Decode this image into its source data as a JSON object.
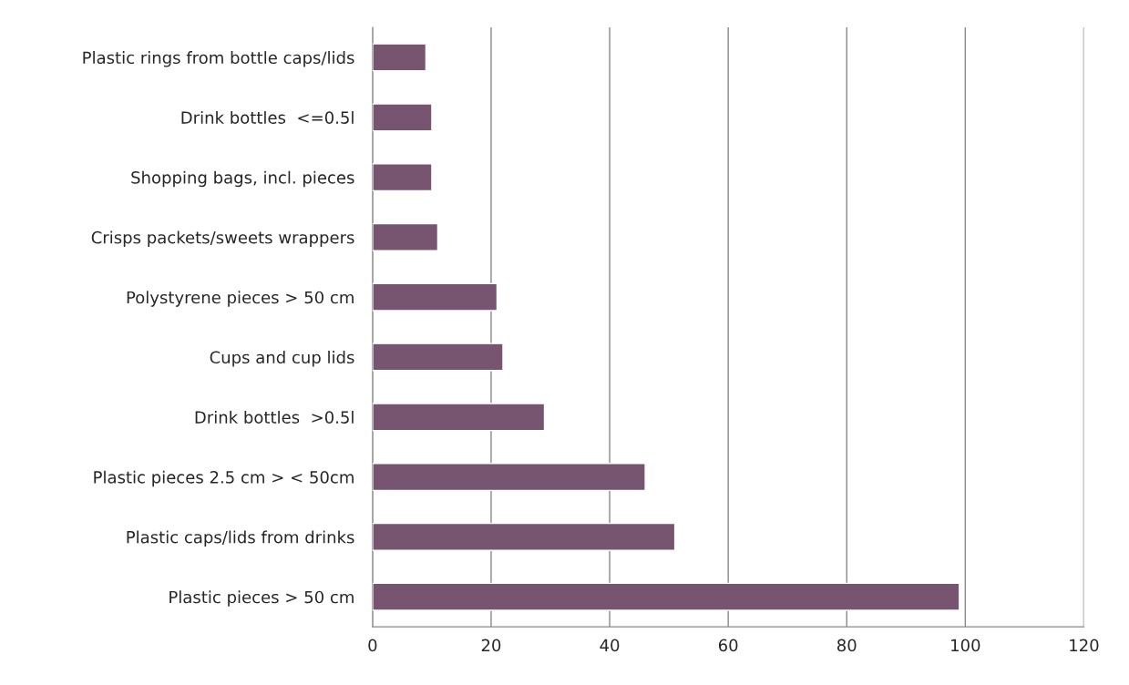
{
  "chart_data": {
    "type": "bar",
    "orientation": "horizontal",
    "categories": [
      "Plastic rings from bottle caps/lids",
      "Drink bottles  <=0.5l",
      "Shopping bags, incl. pieces",
      "Crisps packets/sweets wrappers",
      "Polystyrene pieces > 50 cm",
      "Cups and cup lids",
      "Drink bottles  >0.5l",
      "Plastic pieces 2.5 cm > < 50cm",
      "Plastic caps/lids from drinks",
      "Plastic pieces > 50 cm"
    ],
    "values": [
      9,
      10,
      10,
      11,
      21,
      22,
      29,
      46,
      51,
      99
    ],
    "color": "#775470",
    "xlim": [
      0,
      120
    ],
    "xticks": [
      0,
      20,
      40,
      60,
      80,
      100,
      120
    ],
    "grid": "x"
  }
}
